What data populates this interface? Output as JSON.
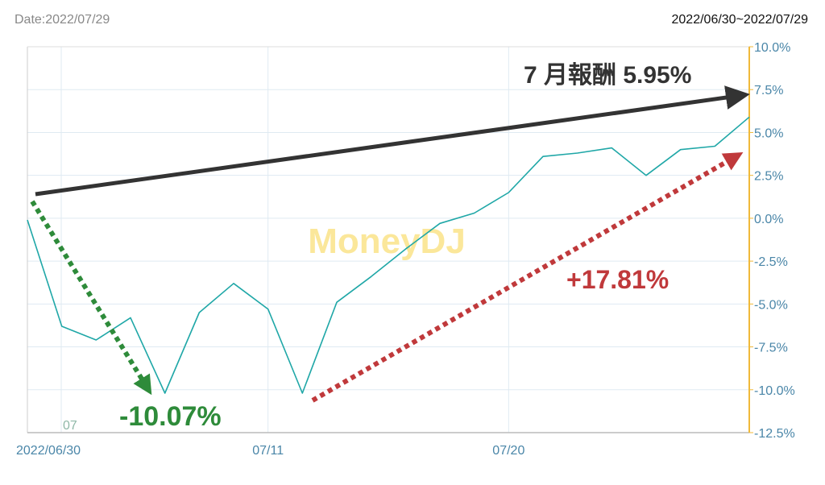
{
  "header": {
    "date_label": "Date:2022/07/29",
    "range_label": "2022/06/30~2022/07/29"
  },
  "watermark": "MoneyDJ",
  "month_marker": "07",
  "chart_data": {
    "type": "line",
    "x": [
      "2022/06/30",
      "07/01",
      "07/04",
      "07/05",
      "07/06",
      "07/07",
      "07/08",
      "07/11",
      "07/12",
      "07/13",
      "07/14",
      "07/15",
      "07/18",
      "07/19",
      "07/20",
      "07/21",
      "07/22",
      "07/25",
      "07/26",
      "07/27",
      "07/28",
      "07/29"
    ],
    "x_tick_labels": [
      "2022/06/30",
      "07/11",
      "07/20"
    ],
    "series": [
      {
        "values": [
          -0.1,
          -6.3,
          -7.1,
          -5.8,
          -10.2,
          -5.5,
          -3.8,
          -5.3,
          -10.2,
          -4.9,
          -3.4,
          -1.8,
          -0.3,
          0.3,
          1.5,
          3.6,
          3.8,
          4.1,
          2.5,
          4.0,
          4.2,
          5.9
        ]
      }
    ],
    "ylim": [
      -12.5,
      10.0
    ],
    "y_ticks": [
      "10.0%",
      "7.5%",
      "5.0%",
      "2.5%",
      "0.0%",
      "-2.5%",
      "-5.0%",
      "-7.5%",
      "-10.0%",
      "-12.5%"
    ],
    "grid": true,
    "colors": {
      "line": "#1fa7a7",
      "axis_right": "#f0b93a",
      "grid": "#dfeaf2",
      "tick_text": "#4a86a8"
    },
    "annotations": [
      {
        "text": "7 月報酬 5.95%",
        "color": "#333333"
      },
      {
        "text": "-10.07%",
        "color": "#2e8b3a"
      },
      {
        "text": "+17.81%",
        "color": "#c0393b"
      }
    ]
  }
}
